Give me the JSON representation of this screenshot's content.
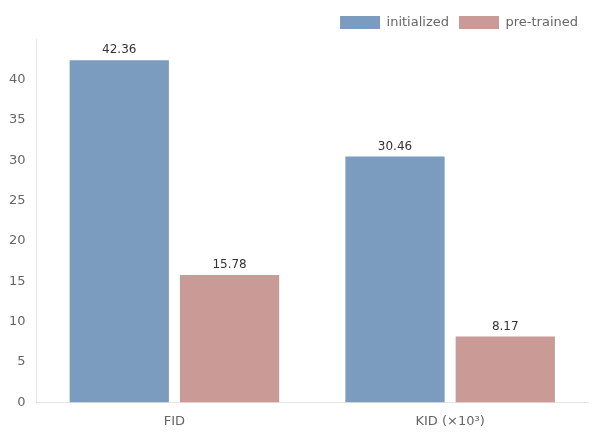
{
  "chart_data": {
    "type": "bar",
    "categories": [
      "FID",
      "KID (×10³)"
    ],
    "series": [
      {
        "name": "initialized",
        "color": "#7B9BBF",
        "values": [
          42.36,
          30.46
        ]
      },
      {
        "name": "pre-trained",
        "color": "#C99A96",
        "values": [
          15.78,
          8.17
        ]
      }
    ],
    "ylim": [
      0,
      45
    ],
    "yticks": [
      0,
      5,
      10,
      15,
      20,
      25,
      30,
      35,
      40
    ],
    "grid": false,
    "legend": "upper right",
    "data_labels": true
  }
}
